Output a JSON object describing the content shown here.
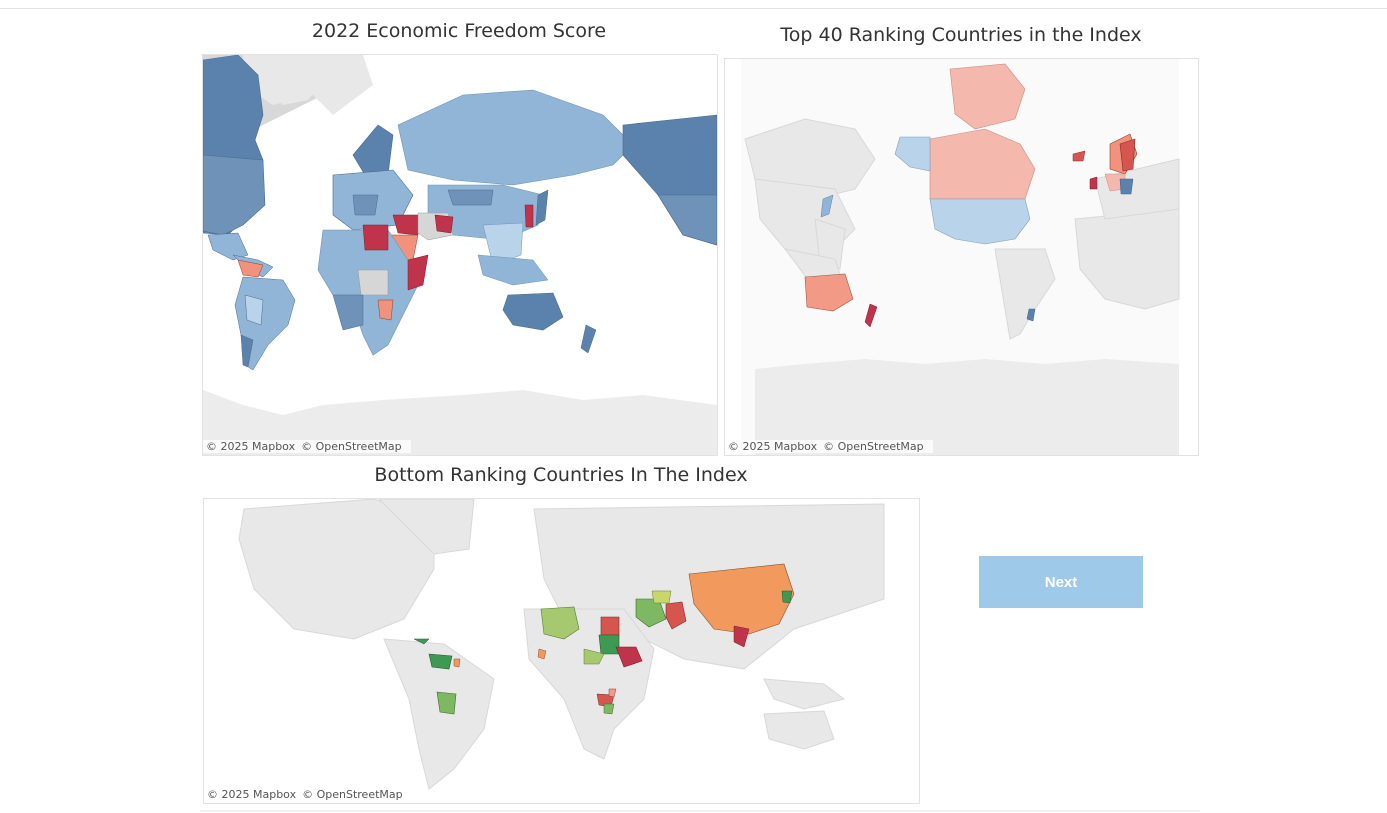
{
  "colors": {
    "land": "#e8e8e8",
    "ocean": "#ffffff",
    "border": "#d0d0d0",
    "dark_blue": "#5b82ad",
    "mid_blue": "#91b5d6",
    "light_blue": "#b9d4ea",
    "grey_nodata": "#d6d6d6",
    "pink": "#f4b8ad",
    "salmon": "#f2917c",
    "crimson": "#c0344b",
    "red": "#d6564f",
    "orange": "#f29a5e",
    "dark_green": "#3e9a53",
    "green": "#7fb862",
    "light_green": "#a6c86e",
    "yellow_green": "#c8d76a",
    "button_bg": "#9ec9e8"
  },
  "maps": [
    {
      "title": "2022 Economic Freedom Score",
      "attribution": [
        "© 2025 Mapbox",
        "© OpenStreetMap"
      ]
    },
    {
      "title": "Top 40 Ranking Countries in the Index",
      "attribution": [
        "© 2025 Mapbox",
        "© OpenStreetMap"
      ]
    },
    {
      "title": "Bottom Ranking Countries In The Index",
      "attribution": [
        "© 2025 Mapbox",
        "© OpenStreetMap"
      ]
    }
  ],
  "next_button": {
    "label": "Next"
  }
}
